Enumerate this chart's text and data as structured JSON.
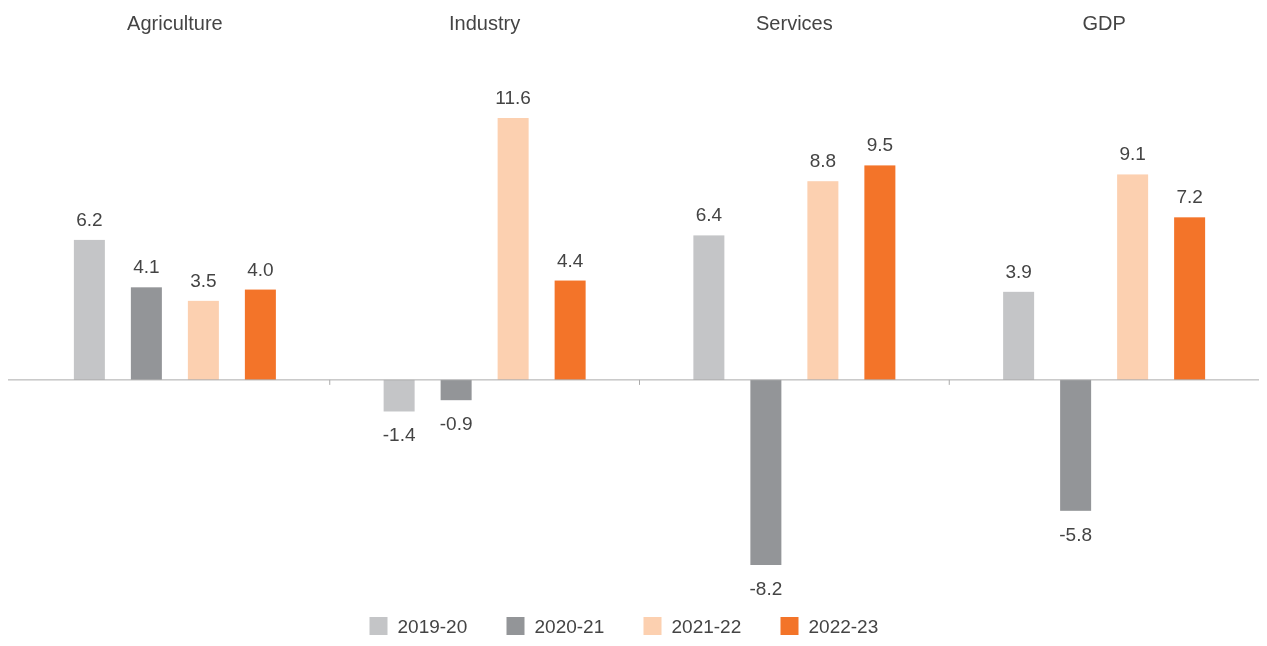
{
  "chart_data": {
    "type": "bar",
    "categories": [
      "Agriculture",
      "Industry",
      "Services",
      "GDP"
    ],
    "series": [
      {
        "name": "2019-20",
        "color": "#c4c5c7",
        "values": [
          6.2,
          -1.4,
          6.4,
          3.9
        ],
        "value_labels": [
          "6.2",
          "-1.4",
          "6.4",
          "3.9"
        ]
      },
      {
        "name": "2020-21",
        "color": "#939598",
        "values": [
          4.1,
          -0.9,
          -8.2,
          -5.8
        ],
        "value_labels": [
          "4.1",
          "-0.9",
          "-8.2",
          "-5.8"
        ]
      },
      {
        "name": "2021-22",
        "color": "#fcd0b0",
        "values": [
          3.5,
          11.6,
          8.8,
          9.1
        ],
        "value_labels": [
          "3.5",
          "11.6",
          "8.8",
          "9.1"
        ]
      },
      {
        "name": "2022-23",
        "color": "#f37429",
        "values": [
          4.0,
          4.4,
          9.5,
          7.2
        ],
        "value_labels": [
          "4.0",
          "4.4",
          "9.5",
          "7.2"
        ]
      }
    ],
    "legend": "bottom"
  }
}
